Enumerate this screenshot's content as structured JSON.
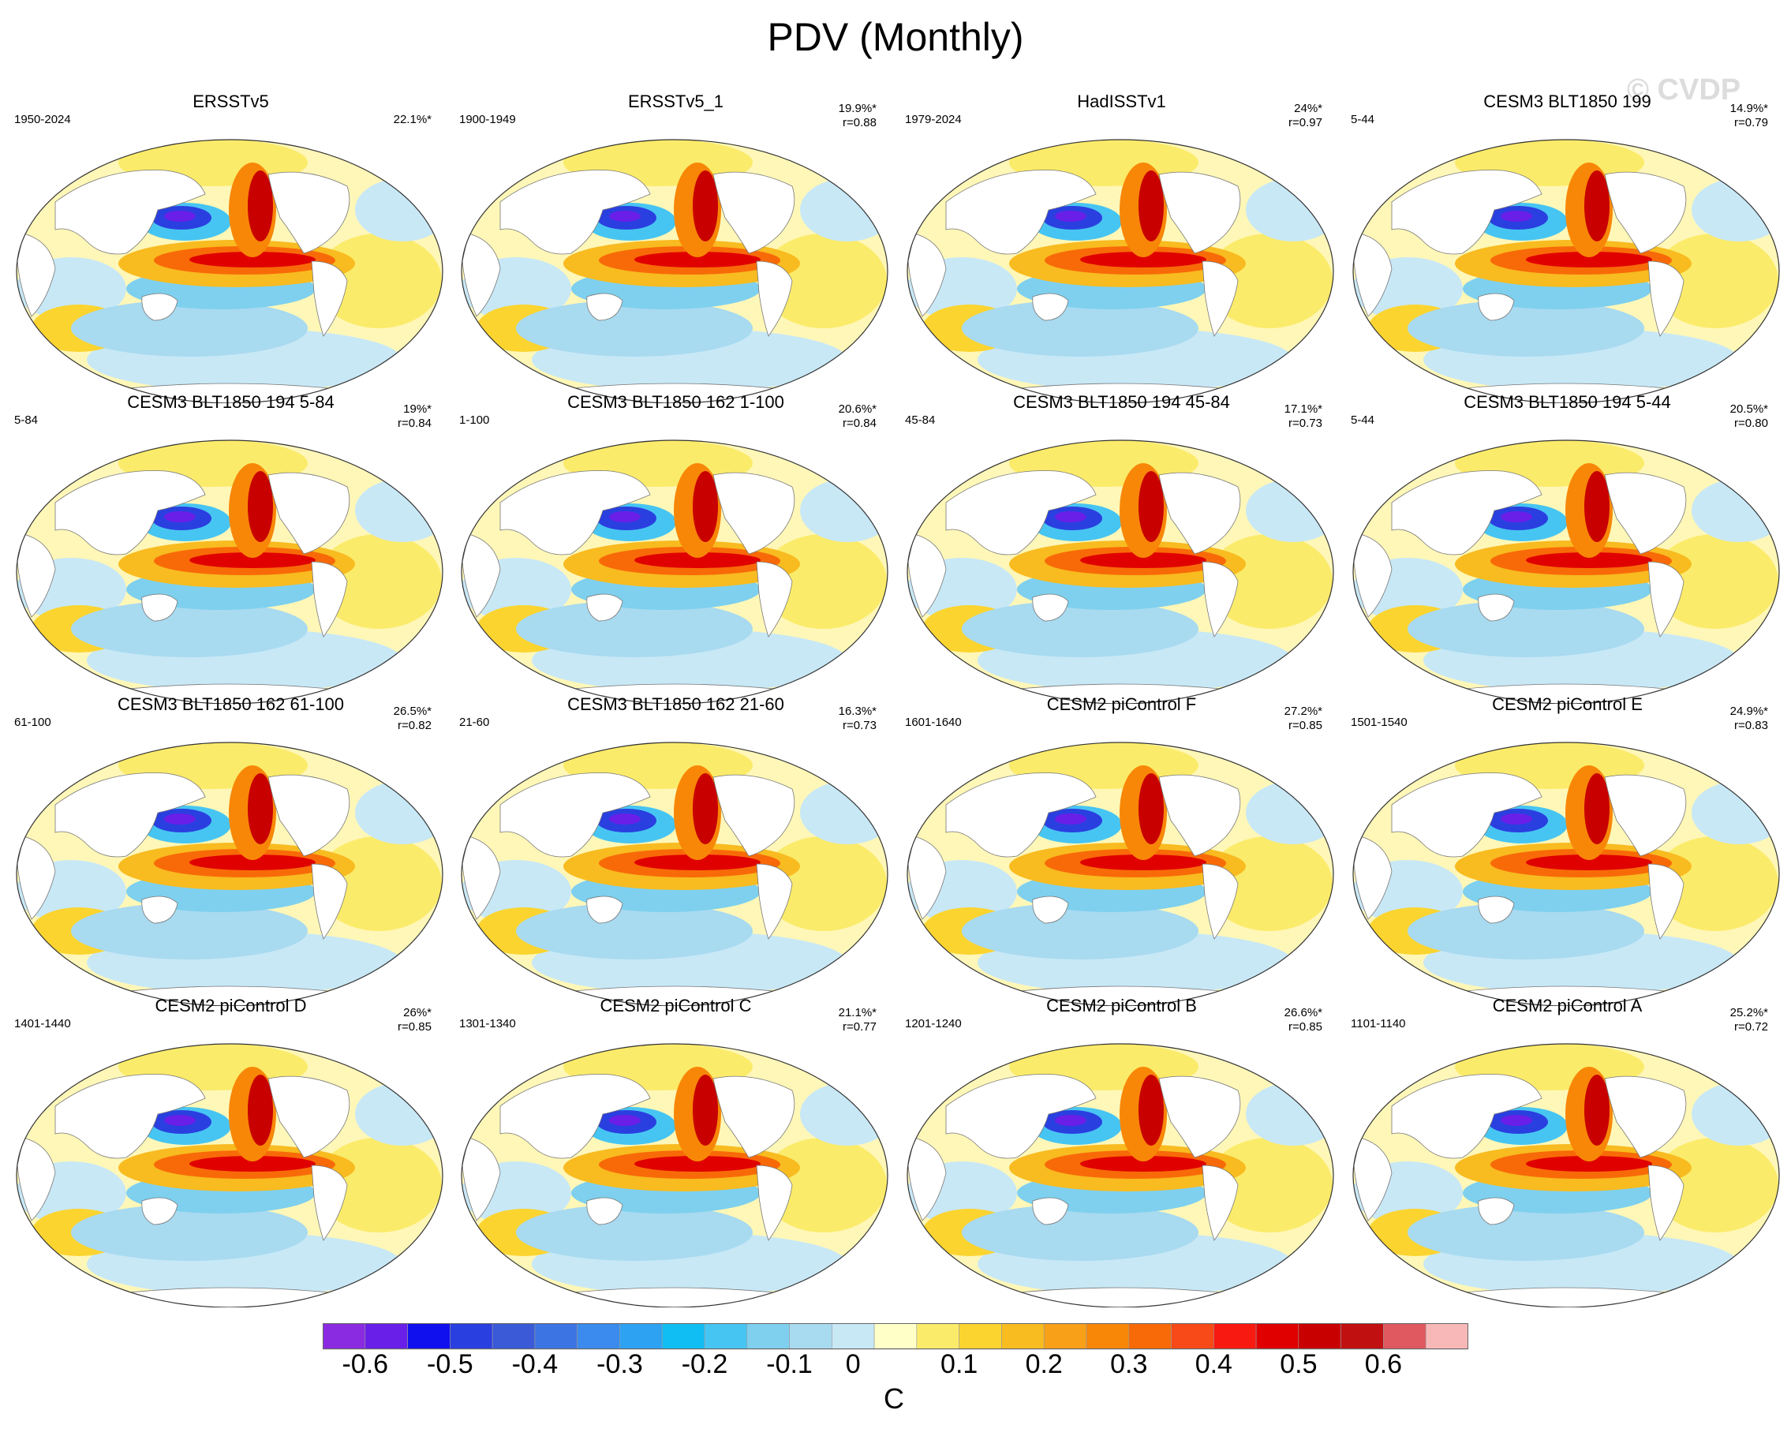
{
  "title": "PDV (Monthly)",
  "watermark": "© CVDP",
  "chart_data": {
    "type": "map-panels",
    "variable": "PDV monthly SST regression",
    "units": "C",
    "colorbar": {
      "labels": [
        "-0.6",
        "-0.5",
        "-0.4",
        "-0.3",
        "-0.2",
        "-0.1",
        "0",
        "0.1",
        "0.2",
        "0.3",
        "0.4",
        "0.5",
        "0.6"
      ],
      "colors": [
        "#8a2be2",
        "#6a1fe8",
        "#1010ee",
        "#2a3fe0",
        "#3a5ad8",
        "#3d74e3",
        "#3a8bed",
        "#2ea2f2",
        "#11bef4",
        "#47c5f2",
        "#7ed0ee",
        "#a8daf0",
        "#c8e8f6",
        "#ffffc8",
        "#fbeb6a",
        "#fbd430",
        "#f8bb20",
        "#f8a018",
        "#f88708",
        "#f86a08",
        "#f84a18",
        "#f81a10",
        "#e00000",
        "#c80000",
        "#c01010",
        "#e05860",
        "#f8b8b8"
      ]
    },
    "panels": [
      {
        "title": "ERSSTv5",
        "period": "1950-2024",
        "pct": "22.1%*",
        "r": ""
      },
      {
        "title": "ERSSTv5_1",
        "period": "1900-1949",
        "pct": "19.9%*",
        "r": "r=0.88"
      },
      {
        "title": "HadISSTv1",
        "period": "1979-2024",
        "pct": "24%*",
        "r": "r=0.97"
      },
      {
        "title": "CESM3 BLT1850 199",
        "period": "5-44",
        "pct": "14.9%*",
        "r": "r=0.79"
      },
      {
        "title": "CESM3 BLT1850 194 5-84",
        "period": "5-84",
        "pct": "19%*",
        "r": "r=0.84"
      },
      {
        "title": "CESM3 BLT1850 162 1-100",
        "period": "1-100",
        "pct": "20.6%*",
        "r": "r=0.84"
      },
      {
        "title": "CESM3 BLT1850 194 45-84",
        "period": "45-84",
        "pct": "17.1%*",
        "r": "r=0.73"
      },
      {
        "title": "CESM3 BLT1850 194 5-44",
        "period": "5-44",
        "pct": "20.5%*",
        "r": "r=0.80"
      },
      {
        "title": "CESM3 BLT1850 162 61-100",
        "period": "61-100",
        "pct": "26.5%*",
        "r": "r=0.82"
      },
      {
        "title": "CESM3 BLT1850 162 21-60",
        "period": "21-60",
        "pct": "16.3%*",
        "r": "r=0.73"
      },
      {
        "title": "CESM2 piControl F",
        "period": "1601-1640",
        "pct": "27.2%*",
        "r": "r=0.85"
      },
      {
        "title": "CESM2 piControl E",
        "period": "1501-1540",
        "pct": "24.9%*",
        "r": "r=0.83"
      },
      {
        "title": "CESM2 piControl D",
        "period": "1401-1440",
        "pct": "26%*",
        "r": "r=0.85"
      },
      {
        "title": "CESM2 piControl C",
        "period": "1301-1340",
        "pct": "21.1%*",
        "r": "r=0.77"
      },
      {
        "title": "CESM2 piControl B",
        "period": "1201-1240",
        "pct": "26.6%*",
        "r": "r=0.85"
      },
      {
        "title": "CESM2 piControl A",
        "period": "1101-1140",
        "pct": "25.2%*",
        "r": "r=0.72"
      }
    ]
  }
}
